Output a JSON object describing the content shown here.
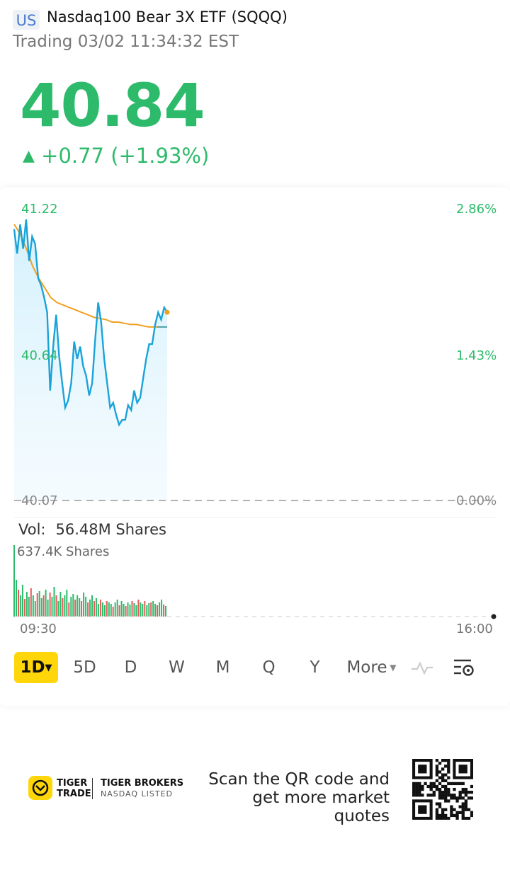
{
  "header": {
    "market_badge": "US",
    "title": "Nasdaq100 Bear 3X ETF (SQQQ)",
    "status": "Trading 03/02 11:34:32 EST"
  },
  "quote": {
    "price": "40.84",
    "change": "+0.77 (+1.93%)",
    "direction_icon": "triangle-up-icon"
  },
  "price_chart": {
    "y_left": [
      "41.22",
      "40.64",
      "40.07"
    ],
    "y_right": [
      "2.86%",
      "1.43%",
      "0.00%"
    ],
    "price_range": [
      40.07,
      41.22
    ],
    "line_color": "#1aa3d9",
    "avg_line_color": "#f0a020",
    "price_series": [
      41.18,
      41.08,
      41.2,
      41.1,
      41.22,
      41.05,
      41.15,
      41.12,
      40.98,
      40.95,
      40.9,
      40.84,
      40.52,
      40.7,
      40.83,
      40.66,
      40.55,
      40.45,
      40.48,
      40.55,
      40.72,
      40.65,
      40.7,
      40.62,
      40.58,
      40.5,
      40.55,
      40.73,
      40.88,
      40.8,
      40.65,
      40.55,
      40.45,
      40.47,
      40.42,
      40.38,
      40.4,
      40.4,
      40.46,
      40.44,
      40.52,
      40.47,
      40.49,
      40.57,
      40.65,
      40.71,
      40.71,
      40.79,
      40.84,
      40.81,
      40.86,
      40.84
    ],
    "avg_series": [
      41.2,
      41.16,
      41.1,
      41.03,
      40.98,
      40.94,
      40.9,
      40.88,
      40.87,
      40.86,
      40.85,
      40.84,
      40.83,
      40.82,
      40.815,
      40.81,
      40.8,
      40.8,
      40.795,
      40.79,
      40.79,
      40.785,
      40.78,
      40.78,
      40.78,
      40.78
    ],
    "current_price": 40.84
  },
  "volume": {
    "label": "Vol:",
    "total": "56.48M Shares",
    "max_label": "637.4K Shares",
    "up_color": "#2dbb6b",
    "down_color": "#e85a5a",
    "bars": [
      0.52,
      0.38,
      0.3,
      0.45,
      0.25,
      0.35,
      0.28,
      0.4,
      0.3,
      0.22,
      0.33,
      0.36,
      0.26,
      0.3,
      0.38,
      0.24,
      0.34,
      0.28,
      0.42,
      0.3,
      0.22,
      0.35,
      0.26,
      0.3,
      0.38,
      0.2,
      0.28,
      0.32,
      0.24,
      0.3,
      0.26,
      0.22,
      0.34,
      0.28,
      0.2,
      0.24,
      0.3,
      0.22,
      0.26,
      0.18,
      0.24,
      0.2,
      0.16,
      0.22,
      0.2,
      0.18,
      0.14,
      0.2,
      0.24,
      0.16,
      0.22,
      0.18,
      0.15,
      0.2,
      0.17,
      0.22,
      0.19,
      0.16,
      0.24,
      0.2,
      0.18,
      0.22,
      0.16,
      0.19,
      0.2,
      0.22,
      0.18,
      0.16,
      0.2,
      0.24,
      0.17,
      0.15
    ],
    "t_open": "09:30",
    "t_close": "16:00"
  },
  "periods": {
    "tabs": [
      "1D",
      "5D",
      "D",
      "W",
      "M",
      "Q",
      "Y",
      "More"
    ],
    "active": "1D",
    "indicator_icon": "pulse-icon",
    "settings_icon": "chart-settings-icon"
  },
  "footer": {
    "brand_line1": "TIGER",
    "brand_line2": "TRADE",
    "brand_right1": "TIGER BROKERS",
    "brand_right2": "NASDAQ LISTED",
    "scan_text": "Scan the QR code and get more market quotes",
    "qr_icon": "qr-code-icon"
  }
}
